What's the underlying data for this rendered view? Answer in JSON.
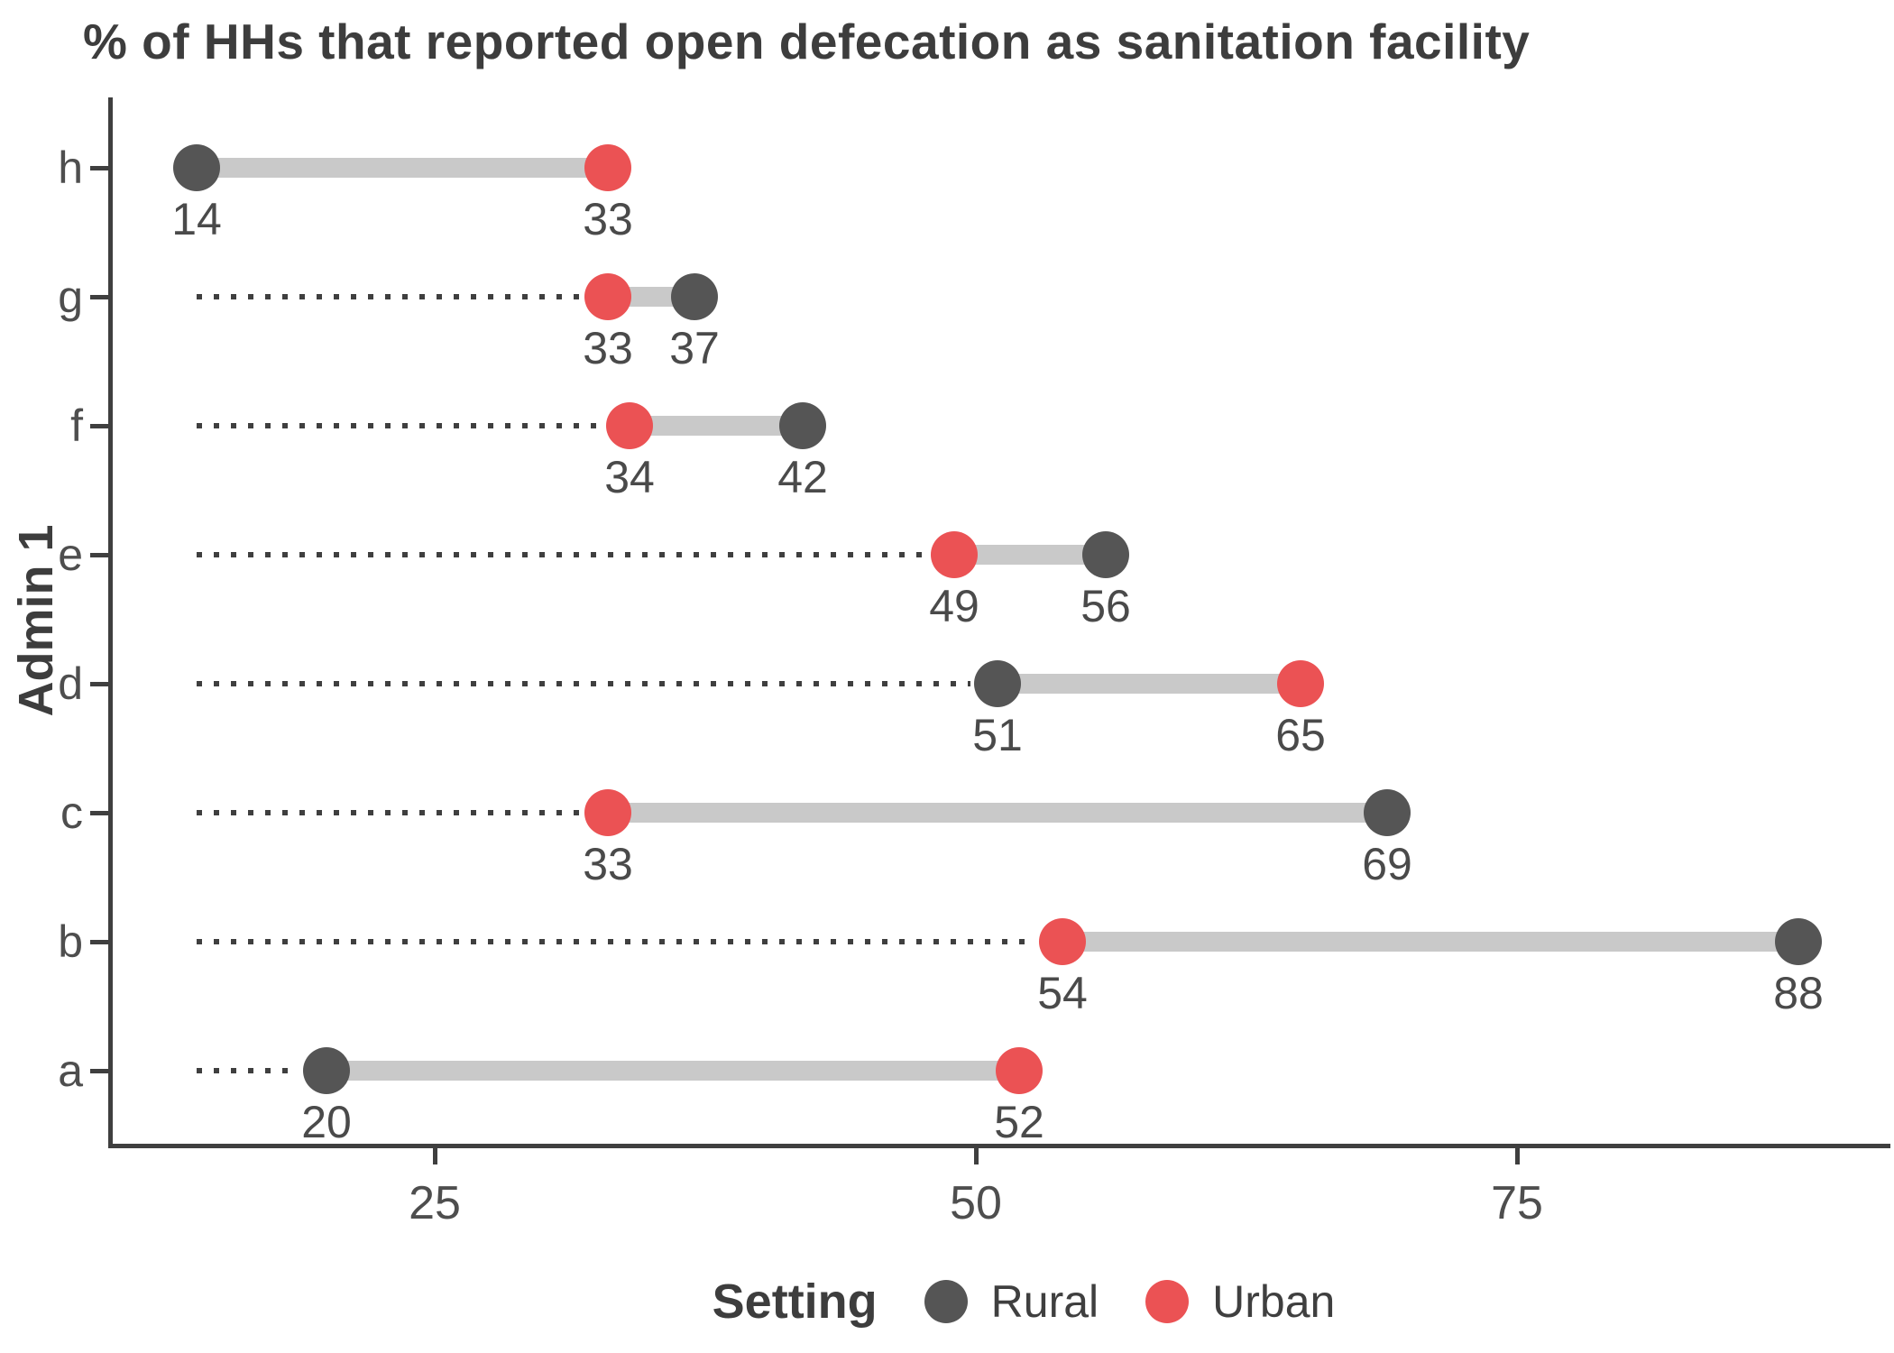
{
  "title": "% of HHs that reported open defecation as sanitation facility",
  "y_axis_title": "Admin 1",
  "legend": {
    "title": "Setting",
    "items": [
      {
        "label": "Rural",
        "color": "#555555"
      },
      {
        "label": "Urban",
        "color": "#EB5254"
      }
    ]
  },
  "colors": {
    "rural": "#555555",
    "urban": "#EB5254",
    "connector": "#C9C9C9",
    "leader": "#3F3F3F",
    "axis": "#3F3F3F",
    "text_dark": "#3D3D3D",
    "text_label": "#4A4A4A"
  },
  "chart_data": {
    "type": "scatter",
    "subtype": "dumbbell",
    "title": "% of HHs that reported open defecation as sanitation facility",
    "xlabel": "",
    "ylabel": "Admin 1",
    "categories": [
      "h",
      "g",
      "f",
      "e",
      "d",
      "c",
      "b",
      "a"
    ],
    "series": [
      {
        "name": "Rural",
        "color": "#555555",
        "values": [
          14,
          37,
          42,
          56,
          51,
          69,
          88,
          20
        ]
      },
      {
        "name": "Urban",
        "color": "#EB5254",
        "values": [
          33,
          33,
          34,
          49,
          65,
          33,
          54,
          52
        ]
      }
    ],
    "point_value_labels": true,
    "xlim": [
      10,
      92
    ],
    "x_ticks": [
      25,
      50,
      75
    ],
    "grid": false,
    "legend_position": "bottom",
    "legend_title": "Setting",
    "leader_line_start": 14,
    "connector_color": "#C9C9C9",
    "leader_color": "#3F3F3F"
  }
}
